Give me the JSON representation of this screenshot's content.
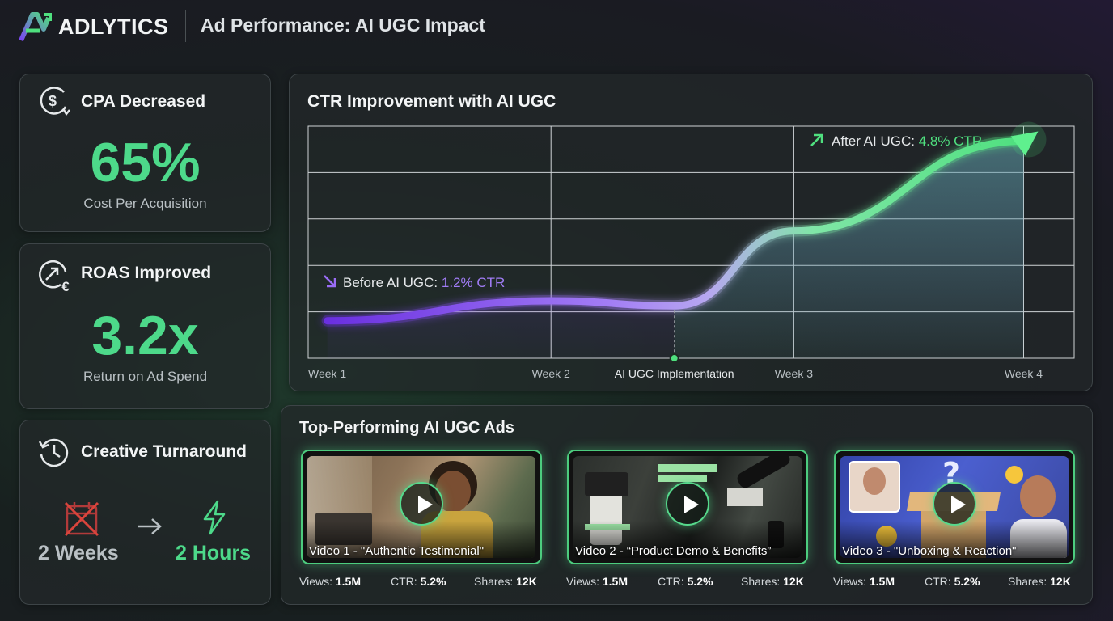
{
  "header": {
    "brand": "ADLYTICS",
    "title": "Ad Performance: AI UGC Impact"
  },
  "metrics": {
    "cpa": {
      "title": "CPA Decreased",
      "value": "65%",
      "label": "Cost Per Acquisition",
      "icon": "dollar-refresh-icon"
    },
    "roas": {
      "title": "ROAS Improved",
      "value": "3.2x",
      "label": "Return on Ad Spend",
      "icon": "arrow-euro-icon"
    },
    "turnaround": {
      "title": "Creative Turnaround",
      "before": "2 Weeks",
      "after": "2 Hours",
      "icon": "history-clock-icon"
    }
  },
  "chart_data": {
    "type": "line",
    "title": "CTR Improvement with AI UGC",
    "categories": [
      "Week 1",
      "Week 2",
      "AI UGC Implementation",
      "Week 3",
      "Week 4"
    ],
    "annotations": {
      "before": {
        "prefix": "Before AI UGC: ",
        "value": "1.2% CTR"
      },
      "after": {
        "prefix": "After AI UGC: ",
        "value": "4.8% CTR"
      }
    },
    "series": [
      {
        "values": [
          1.2,
          1.6,
          1.5,
          3.0,
          4.8
        ]
      }
    ],
    "colors": {
      "before": "#7a3ff0",
      "after": "#4fe07f"
    },
    "grid": true
  },
  "ads": {
    "title": "Top-Performing AI UGC Ads",
    "items": [
      {
        "caption": "Video 1 - \"Authentic Testimonial\"",
        "views_label": "Views:",
        "views": "1.5M",
        "ctr_label": "CTR:",
        "ctr": "5.2%",
        "shares_label": "Shares:",
        "shares": "12K"
      },
      {
        "caption": "Video 2 - “Product Demo & Benefits”",
        "views_label": "Views:",
        "views": "1.5M",
        "ctr_label": "CTR:",
        "ctr": "5.2%",
        "shares_label": "Shares:",
        "shares": "12K"
      },
      {
        "caption": "Video 3 - \"Unboxing & Reaction\"",
        "views_label": "Views:",
        "views": "1.5M",
        "ctr_label": "CTR:",
        "ctr": "5.2%",
        "shares_label": "Shares:",
        "shares": "12K"
      }
    ]
  }
}
